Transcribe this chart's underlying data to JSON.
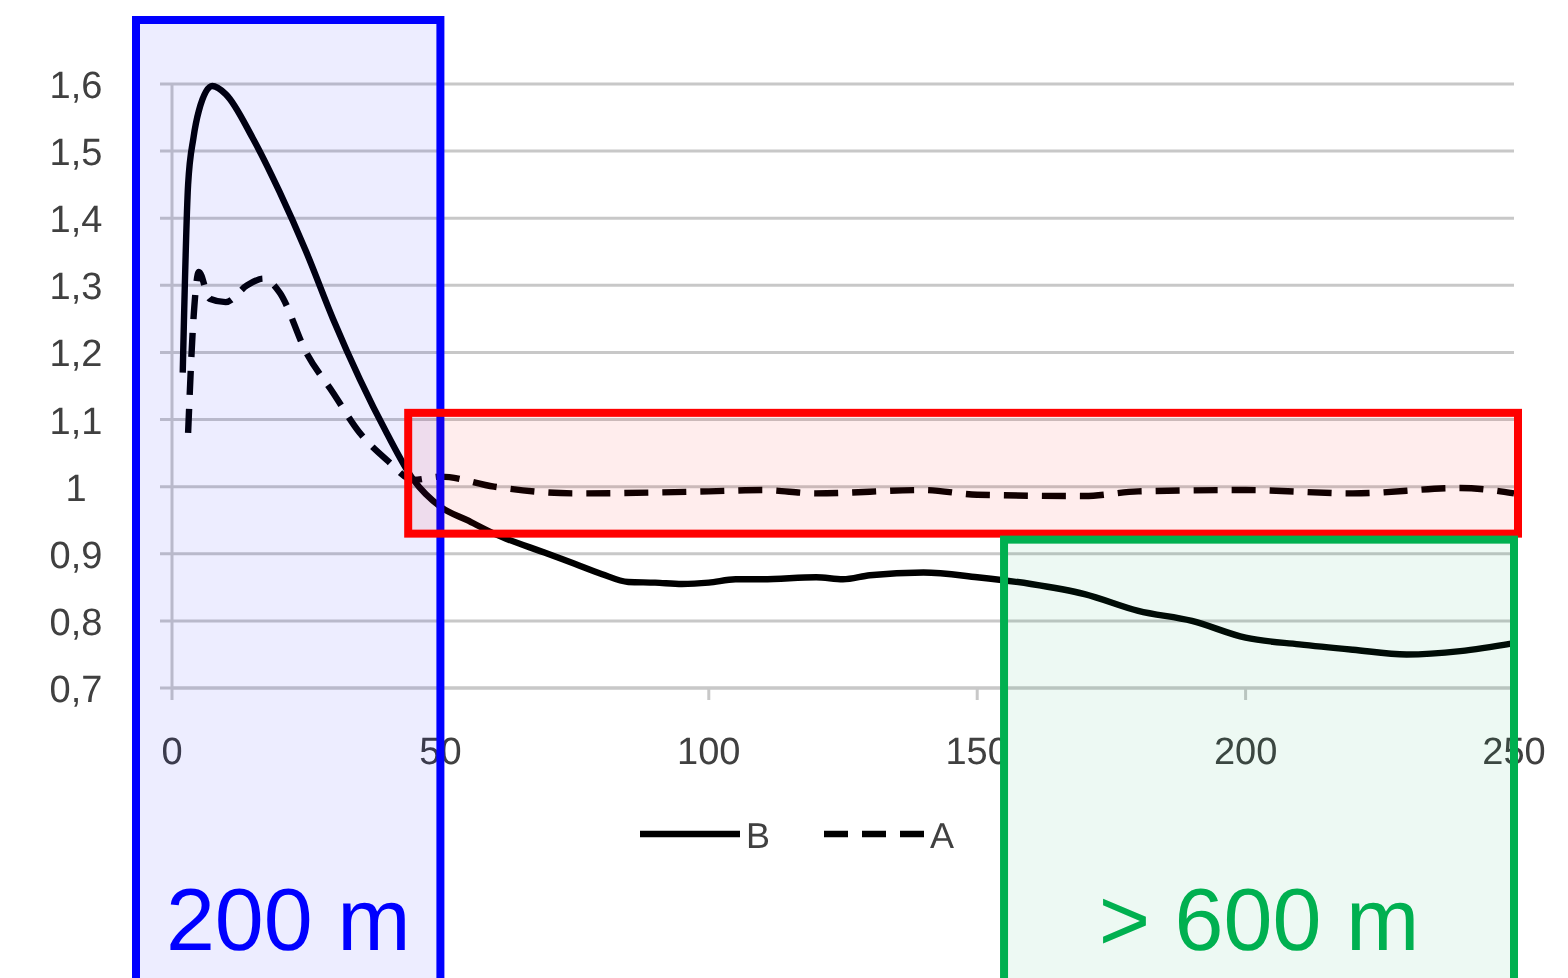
{
  "chart_data": {
    "type": "line",
    "xlim": [
      0,
      250
    ],
    "xticks": [
      0,
      50,
      100,
      150,
      200,
      250
    ],
    "ylim": [
      0.7,
      1.6
    ],
    "yticks": [
      {
        "value": 0.7,
        "label": "0,7"
      },
      {
        "value": 0.8,
        "label": "0,8"
      },
      {
        "value": 0.9,
        "label": "0,9"
      },
      1,
      {
        "value": 1.1,
        "label": "1,1"
      },
      {
        "value": 1.2,
        "label": "1,2"
      },
      {
        "value": 1.3,
        "label": "1,3"
      },
      {
        "value": 1.4,
        "label": "1,4"
      },
      {
        "value": 1.5,
        "label": "1,5"
      },
      {
        "value": 1.6,
        "label": "1,6"
      }
    ],
    "grid": "y",
    "legend": "bottom",
    "series": [
      {
        "name": "B",
        "color": "#000000",
        "line_style": "solid",
        "x": [
          2,
          3,
          4,
          5,
          7.5,
          10,
          15,
          20,
          25,
          30,
          35,
          40,
          45,
          50,
          55,
          60,
          70,
          75,
          80,
          85,
          90,
          95,
          100,
          105,
          110,
          120,
          125,
          130,
          140,
          150,
          160,
          170,
          180,
          190,
          200,
          210,
          220,
          230,
          240,
          250
        ],
        "values": [
          1.17,
          1.45,
          1.52,
          1.56,
          1.597,
          1.585,
          1.52,
          1.44,
          1.35,
          1.25,
          1.16,
          1.08,
          1.01,
          0.97,
          0.95,
          0.93,
          0.9,
          0.885,
          0.87,
          0.858,
          0.857,
          0.855,
          0.857,
          0.862,
          0.862,
          0.865,
          0.862,
          0.868,
          0.872,
          0.865,
          0.855,
          0.84,
          0.815,
          0.8,
          0.775,
          0.765,
          0.757,
          0.75,
          0.755,
          0.767
        ]
      },
      {
        "name": "A",
        "color": "#000000",
        "line_style": "dashed",
        "x": [
          3,
          4,
          5,
          7,
          10,
          14,
          17,
          20,
          25,
          30,
          35,
          40,
          45,
          50,
          60,
          75,
          100,
          110,
          120,
          140,
          150,
          170,
          180,
          200,
          220,
          240,
          250
        ],
        "values": [
          1.08,
          1.25,
          1.32,
          1.28,
          1.275,
          1.3,
          1.31,
          1.29,
          1.2,
          1.14,
          1.08,
          1.04,
          1.01,
          1.015,
          1.0,
          0.99,
          0.993,
          0.995,
          0.99,
          0.995,
          0.988,
          0.986,
          0.993,
          0.995,
          0.99,
          0.998,
          0.99
        ]
      }
    ],
    "bands": [
      {
        "axis": "x",
        "from": 0,
        "to": 50,
        "label": "200 m",
        "color": "#0000ff"
      },
      {
        "axis": "y",
        "from": 0.93,
        "to": 1.11,
        "color": "#ff0000"
      },
      {
        "axis": "x",
        "from": 155,
        "to": 250,
        "label": "> 600 m",
        "color": "#00b050"
      }
    ]
  }
}
